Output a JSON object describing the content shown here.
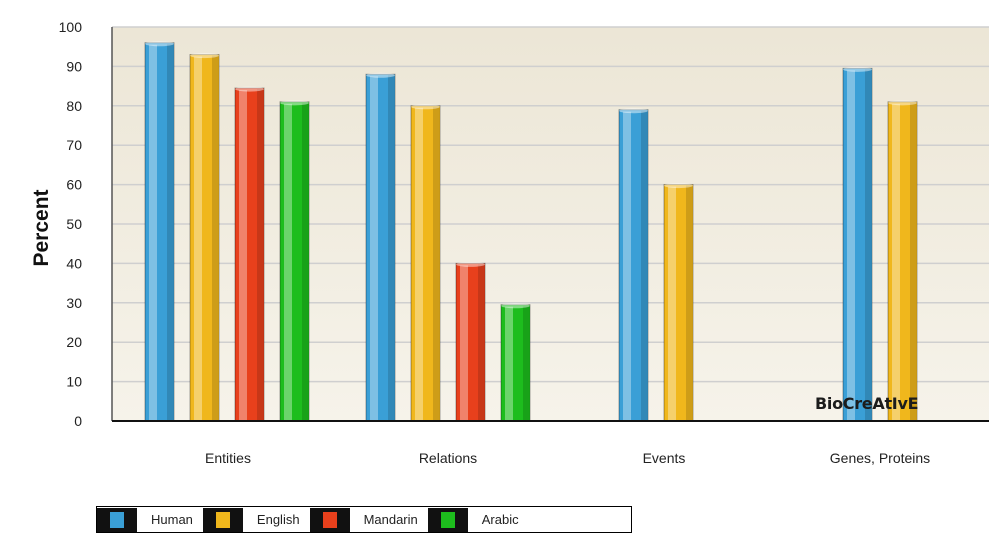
{
  "chart_data": {
    "type": "bar",
    "categories": [
      "Entities",
      "Relations",
      "Events",
      "Genes, Proteins"
    ],
    "series": [
      {
        "name": "Human",
        "color": "#3a9fd6",
        "values": [
          96,
          88,
          79,
          89.5
        ]
      },
      {
        "name": "English",
        "color": "#f0b71c",
        "values": [
          93,
          80,
          60,
          81
        ]
      },
      {
        "name": "Mandarin",
        "color": "#e8401c",
        "values": [
          84.5,
          40,
          null,
          null
        ]
      },
      {
        "name": "Arabic",
        "color": "#1dbd1d",
        "values": [
          81,
          29.5,
          null,
          null
        ]
      }
    ],
    "ylabel": "Percent",
    "ylim": [
      0,
      100
    ],
    "yticks": [
      0,
      10,
      20,
      30,
      40,
      50,
      60,
      70,
      80,
      90,
      100
    ],
    "grid": true,
    "legend_position": "bottom-left"
  },
  "logo_text": "BioCreAtIvE"
}
